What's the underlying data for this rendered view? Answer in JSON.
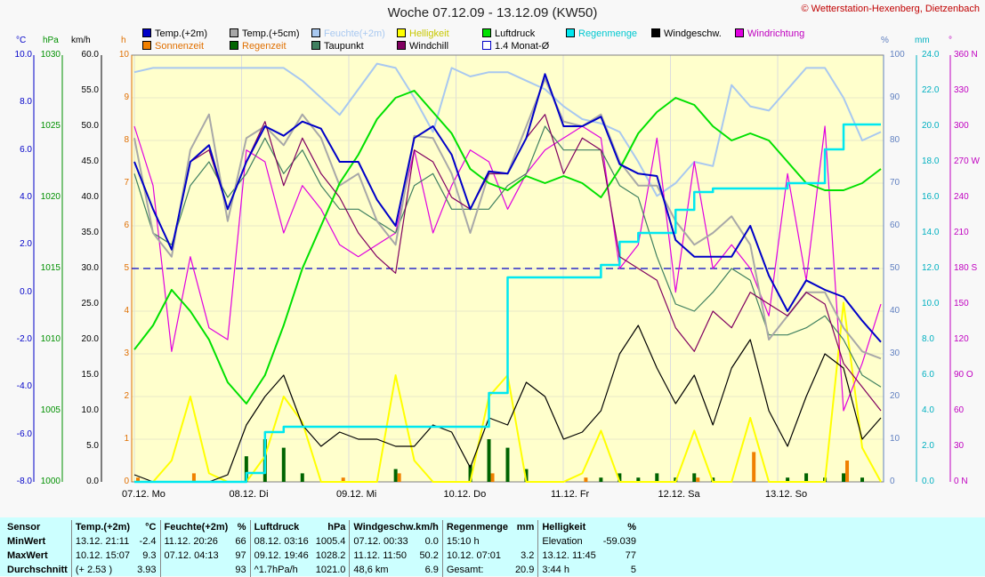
{
  "title": "Woche 07.12.09 - 13.12.09 (KW50)",
  "copyright": "© Wetterstation-Hexenberg, Dietzenbach",
  "units": {
    "temp": "°C",
    "pressure": "hPa",
    "wind": "km/h",
    "hours": "h",
    "percent": "%",
    "rain": "mm",
    "direction": "°"
  },
  "legend": [
    {
      "label": "Temp.(+2m)",
      "color": "#0000c8"
    },
    {
      "label": "Temp.(+5cm)",
      "color": "#a8a8a8"
    },
    {
      "label": "Feuchte(+2m)",
      "color": "#a8c8f0"
    },
    {
      "label": "Helligkeit",
      "color": "#ffff00"
    },
    {
      "label": "Luftdruck",
      "color": "#00e000"
    },
    {
      "label": "Regenmenge",
      "color": "#00e8f0"
    },
    {
      "label": "Windgeschw.",
      "color": "#000000"
    },
    {
      "label": "Windrichtung",
      "color": "#e000e0"
    },
    {
      "label": "Sonnenzeit",
      "color": "#f08000"
    },
    {
      "label": "Regenzeit",
      "color": "#006400"
    },
    {
      "label": "Taupunkt",
      "color": "#408060"
    },
    {
      "label": "Windchill",
      "color": "#800060"
    },
    {
      "label": "1.4 Monat-Ø",
      "color": "#0000c8"
    }
  ],
  "chart_data": {
    "type": "line",
    "title": "Woche 07.12.09 - 13.12.09 (KW50)",
    "x_labels": [
      "07.12. Mo",
      "08.12. Di",
      "09.12. Mi",
      "10.12. Do",
      "11.12. Fr",
      "12.12. Sa",
      "13.12. So"
    ],
    "axes": {
      "temp_c": {
        "range": [
          -8,
          10
        ],
        "ticks": [
          "10.0",
          "8.0",
          "6.0",
          "4.0",
          "2.0",
          "0.0",
          "-2.0",
          "-4.0",
          "-6.0",
          "-8.0"
        ]
      },
      "pressure_hpa": {
        "range": [
          1000,
          1030
        ],
        "ticks": [
          "1030",
          "1025",
          "1020",
          "1015",
          "1010",
          "1005",
          "1000"
        ]
      },
      "wind_kmh": {
        "range": [
          0,
          60
        ],
        "ticks": [
          "60.0",
          "55.0",
          "50.0",
          "45.0",
          "40.0",
          "35.0",
          "30.0",
          "25.0",
          "20.0",
          "15.0",
          "10.0",
          "5.0",
          "0.0"
        ]
      },
      "hours": {
        "range": [
          0,
          10
        ],
        "ticks": [
          "10",
          "9",
          "8",
          "7",
          "6",
          "5",
          "4",
          "3",
          "2",
          "1",
          "0"
        ]
      },
      "humidity_pct": {
        "range": [
          0,
          100
        ],
        "ticks": [
          "100",
          "90",
          "80",
          "70",
          "60",
          "50",
          "40",
          "30",
          "20",
          "10",
          "0"
        ]
      },
      "rain_mm": {
        "range": [
          0,
          24
        ],
        "ticks": [
          "24.0",
          "22.0",
          "20.0",
          "18.0",
          "16.0",
          "14.0",
          "12.0",
          "10.0",
          "8.0",
          "6.0",
          "4.0",
          "2.0",
          "0.0"
        ]
      },
      "direction_deg": {
        "range": [
          0,
          360
        ],
        "ticks": [
          "360 N",
          "330",
          "300",
          "270 W",
          "240",
          "210",
          "180 S",
          "150",
          "120",
          "90 O",
          "60",
          "30",
          "0 N"
        ]
      }
    },
    "monthly_avg_temp": 1.0,
    "series": [
      {
        "name": "Temp.(+2m)",
        "axis": "temp_c",
        "values": [
          5.5,
          3.5,
          1.8,
          5.5,
          6.2,
          3.5,
          5.5,
          7.0,
          6.6,
          7.2,
          6.9,
          5.5,
          5.5,
          3.9,
          2.8,
          6.5,
          7.0,
          5.8,
          3.5,
          5.1,
          5.0,
          6.5,
          9.2,
          7.0,
          7.0,
          7.4,
          5.4,
          5.0,
          4.9,
          2.2,
          1.5,
          1.5,
          1.5,
          2.8,
          0.7,
          -0.8,
          0.5,
          0.1,
          -0.2,
          -1.2,
          -2.1
        ]
      },
      {
        "name": "Temp.(+5cm)",
        "axis": "temp_c",
        "values": [
          6.5,
          2.5,
          1.5,
          6.0,
          7.5,
          3.0,
          6.5,
          7.0,
          6.2,
          7.5,
          6.5,
          4.5,
          5.0,
          3.0,
          2.0,
          6.6,
          6.5,
          5.0,
          2.5,
          5.0,
          5.0,
          7.0,
          9.0,
          7.2,
          7.0,
          7.5,
          5.5,
          4.5,
          4.5,
          3.0,
          2.0,
          2.5,
          3.2,
          2.0,
          -2.0,
          -1.0,
          0.0,
          0.0,
          -1.5,
          -2.5,
          -2.8
        ]
      },
      {
        "name": "Taupunkt",
        "axis": "temp_c",
        "values": [
          5.0,
          2.5,
          2.0,
          4.5,
          5.5,
          4.0,
          5.0,
          6.5,
          5.0,
          6.0,
          4.5,
          3.5,
          3.5,
          3.0,
          2.5,
          4.5,
          5.0,
          3.5,
          3.5,
          3.5,
          4.5,
          5.0,
          7.0,
          6.0,
          6.0,
          6.0,
          4.5,
          4.0,
          1.5,
          -0.5,
          -0.8,
          0.0,
          1.0,
          0.5,
          -1.8,
          -1.8,
          -1.5,
          -1.0,
          -2.0,
          -3.5,
          -4.0
        ]
      },
      {
        "name": "Windchill",
        "axis": "temp_c",
        "values": [
          5.5,
          3.5,
          1.8,
          5.5,
          6.0,
          3.5,
          5.5,
          7.2,
          4.5,
          6.5,
          5.0,
          4.0,
          2.5,
          1.5,
          0.8,
          6.0,
          5.5,
          4.0,
          3.5,
          5.0,
          5.0,
          6.5,
          7.5,
          5.0,
          6.5,
          6.0,
          1.5,
          1.0,
          0.5,
          -1.5,
          -2.5,
          -0.8,
          -1.5,
          0.0,
          -0.5,
          -1.0,
          0.0,
          -0.5,
          -3.0,
          -4.0,
          -5.0
        ]
      },
      {
        "name": "Feuchte(+2m)",
        "axis": "humidity_pct",
        "values": [
          96,
          97,
          97,
          97,
          97,
          97,
          97,
          97,
          97,
          94,
          90,
          86,
          92,
          98,
          97,
          90,
          82,
          97,
          95,
          96,
          96,
          94,
          92,
          88,
          85,
          84,
          82,
          75,
          67,
          70,
          75,
          74,
          93,
          88,
          87,
          92,
          97,
          97,
          90,
          80,
          82
        ]
      },
      {
        "name": "Luftdruck",
        "axis": "pressure_hpa",
        "values": [
          1009.3,
          1011,
          1013.5,
          1012,
          1010,
          1007,
          1005.5,
          1007.5,
          1011,
          1015,
          1018,
          1021,
          1023,
          1025.5,
          1027,
          1027.5,
          1026,
          1024.5,
          1022,
          1021,
          1020.5,
          1021.5,
          1021,
          1021.5,
          1021,
          1020,
          1022,
          1024.5,
          1026,
          1027,
          1026.5,
          1025,
          1024,
          1024.5,
          1024,
          1022.5,
          1021,
          1020.5,
          1020.5,
          1021,
          1022
        ]
      },
      {
        "name": "Windgeschw.",
        "axis": "wind_kmh",
        "values": [
          1,
          0,
          0,
          0,
          0,
          1,
          8,
          12,
          15,
          8,
          5,
          7,
          6,
          6,
          5,
          5,
          8,
          7,
          2,
          9,
          8,
          14,
          12,
          6,
          7,
          10,
          18,
          22,
          16,
          11,
          15,
          8,
          16,
          20,
          10,
          5,
          12,
          18,
          16,
          6,
          9
        ]
      },
      {
        "name": "Windrichtung",
        "axis": "direction_deg",
        "values": [
          300,
          250,
          110,
          190,
          130,
          120,
          280,
          270,
          210,
          250,
          230,
          200,
          190,
          200,
          210,
          280,
          210,
          250,
          280,
          270,
          230,
          260,
          280,
          290,
          300,
          290,
          180,
          200,
          290,
          160,
          270,
          180,
          200,
          180,
          140,
          260,
          170,
          300,
          60,
          100,
          150
        ]
      },
      {
        "name": "Helligkeit",
        "axis": "humidity_pct",
        "values": [
          0,
          0,
          5,
          20,
          2,
          0,
          0,
          6,
          20,
          14,
          0,
          0,
          0,
          0,
          25,
          5,
          0,
          0,
          0,
          20,
          25,
          0,
          0,
          0,
          2,
          12,
          0,
          0,
          0,
          0,
          12,
          0,
          0,
          15,
          0,
          0,
          0,
          0,
          42,
          8,
          0
        ]
      },
      {
        "name": "Regenmenge",
        "axis": "rain_mm",
        "values": [
          0,
          0,
          0,
          0,
          0,
          0,
          0.5,
          2.8,
          3.1,
          3.1,
          3.1,
          3.1,
          3.1,
          3.1,
          3.1,
          3.1,
          3.1,
          3.1,
          3.1,
          5,
          11.5,
          11.5,
          11.5,
          11.5,
          11.5,
          12.2,
          13.5,
          14,
          14,
          15.3,
          16.3,
          16.5,
          16.5,
          16.5,
          16.5,
          16.8,
          16.8,
          18.7,
          20.1,
          20.1,
          20.1
        ]
      },
      {
        "name": "Sonnenzeit",
        "axis": "hours",
        "values": [
          0.1,
          0,
          0,
          0.2,
          0,
          0,
          0,
          0,
          0,
          0,
          0,
          0.1,
          0,
          0,
          0.2,
          0,
          0,
          0,
          0,
          0.2,
          0,
          0,
          0,
          0,
          0.1,
          0,
          0,
          0,
          0,
          0,
          0.1,
          0,
          0,
          0.7,
          0,
          0,
          0,
          0,
          0.5,
          0,
          0
        ]
      },
      {
        "name": "Regenzeit",
        "axis": "hours",
        "values": [
          0,
          0,
          0,
          0,
          0,
          0,
          0.6,
          1.0,
          0.8,
          0.2,
          0,
          0,
          0,
          0,
          0.3,
          0,
          0,
          0,
          0.4,
          1.0,
          0.8,
          0.3,
          0,
          0,
          0,
          0.1,
          0.2,
          0.1,
          0.2,
          0.1,
          0.2,
          0.1,
          0,
          0,
          0,
          0.1,
          0.2,
          0.1,
          0.2,
          0.1,
          0
        ]
      }
    ]
  },
  "stats": {
    "headers": {
      "sensor": "Sensor",
      "temp": "Temp.(+2m)",
      "temp_unit": "°C",
      "hum": "Feuchte(+2m)",
      "hum_unit": "%",
      "press": "Luftdruck",
      "press_unit": "hPa",
      "wind": "Windgeschw.km/h",
      "rain": "Regenmenge",
      "rain_unit": "mm",
      "bright": "Helligkeit",
      "bright_unit": "%"
    },
    "rows": [
      {
        "label": "MinWert",
        "temp_t": "13.12.  21:11",
        "temp_v": "-2.4",
        "hum_t": "11.12.  20:26",
        "hum_v": "66",
        "press_t": "08.12.  03:16",
        "press_v": "1005.4",
        "wind_t": "07.12.  00:33",
        "wind_v": "0.0",
        "rain_t": "15:10 h",
        "rain_v": "",
        "bright_t": "Elevation",
        "bright_v": "-59.039"
      },
      {
        "label": "MaxWert",
        "temp_t": "10.12.  15:07",
        "temp_v": "9.3",
        "hum_t": "07.12.  04:13",
        "hum_v": "97",
        "press_t": "09.12.  19:46",
        "press_v": "1028.2",
        "wind_t": "11.12.  11:50",
        "wind_v": "50.2",
        "rain_t": "10.12.  07:01",
        "rain_v": "3.2",
        "bright_t": "13.12.  11:45",
        "bright_v": "77"
      },
      {
        "label": "Durchschnitt",
        "temp_t": "(+ 2.53 )",
        "temp_v": "3.93",
        "hum_t": "",
        "hum_v": "93",
        "press_t": "^1.7hPa/h",
        "press_v": "1021.0",
        "wind_t": "48,6 km",
        "wind_v": "6.9",
        "rain_t": "Gesamt:",
        "rain_v": "20.9",
        "bright_t": "3:44 h",
        "bright_v": "5"
      }
    ]
  }
}
